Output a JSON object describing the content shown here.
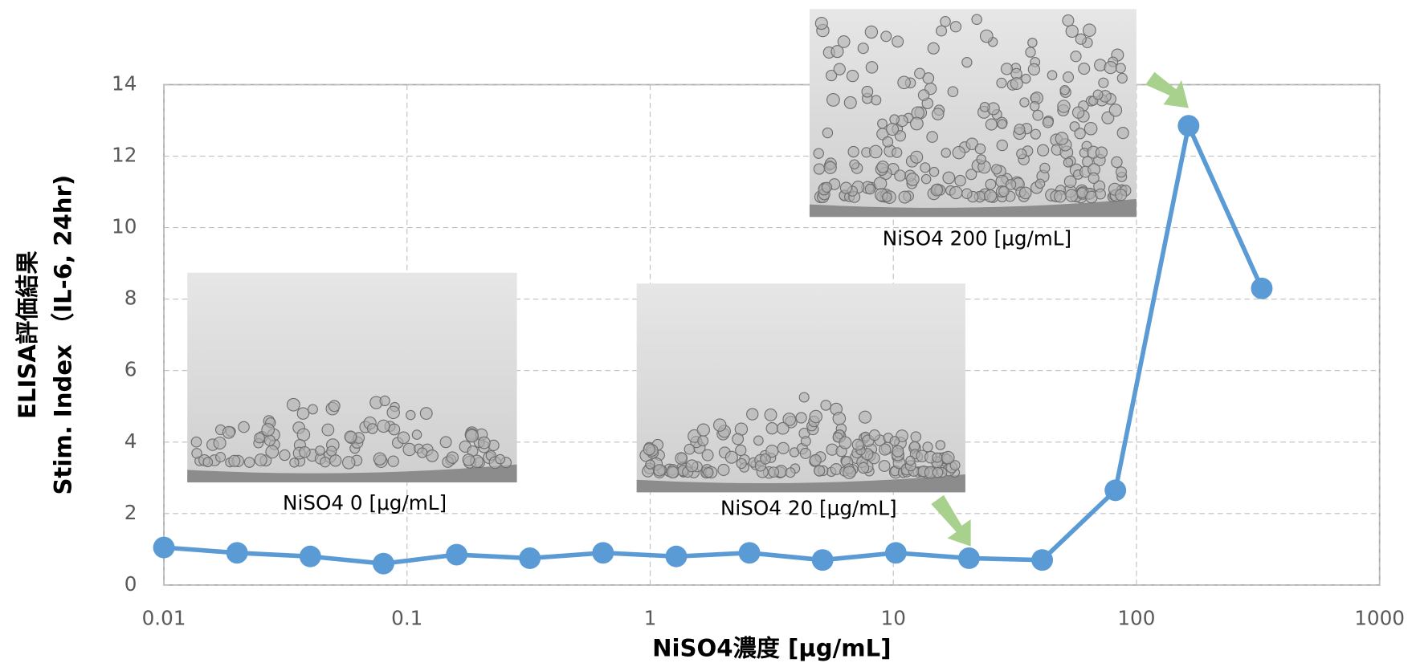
{
  "chart_data": {
    "type": "line",
    "xlabel": "NiSO4濃度 [μg/mL]",
    "ylabel": [
      "ELISA評価結果",
      "Stim. Index （IL-6, 24hr)"
    ],
    "x": [
      0.01,
      0.02,
      0.04,
      0.08,
      0.16,
      0.32,
      0.64,
      1.28,
      2.56,
      5.12,
      10.24,
      20.48,
      40.96,
      81.92,
      163.84,
      327.68
    ],
    "values": [
      1.05,
      0.9,
      0.8,
      0.6,
      0.85,
      0.75,
      0.9,
      0.8,
      0.9,
      0.7,
      0.9,
      0.75,
      0.7,
      2.65,
      12.85,
      8.3
    ],
    "color": "#5b9bd5",
    "xscale": "log",
    "xlim": [
      0.01,
      1000
    ],
    "xticks": [
      0.01,
      0.1,
      1,
      10,
      100,
      1000
    ],
    "ylim": [
      0,
      14
    ],
    "yticks": [
      0,
      2,
      4,
      6,
      8,
      10,
      12,
      14
    ],
    "grid": true,
    "annotations": [
      "NiSO4 0 [μg/mL]",
      "NiSO4 20 [μg/mL]",
      "NiSO4 200 [μg/mL]"
    ]
  }
}
